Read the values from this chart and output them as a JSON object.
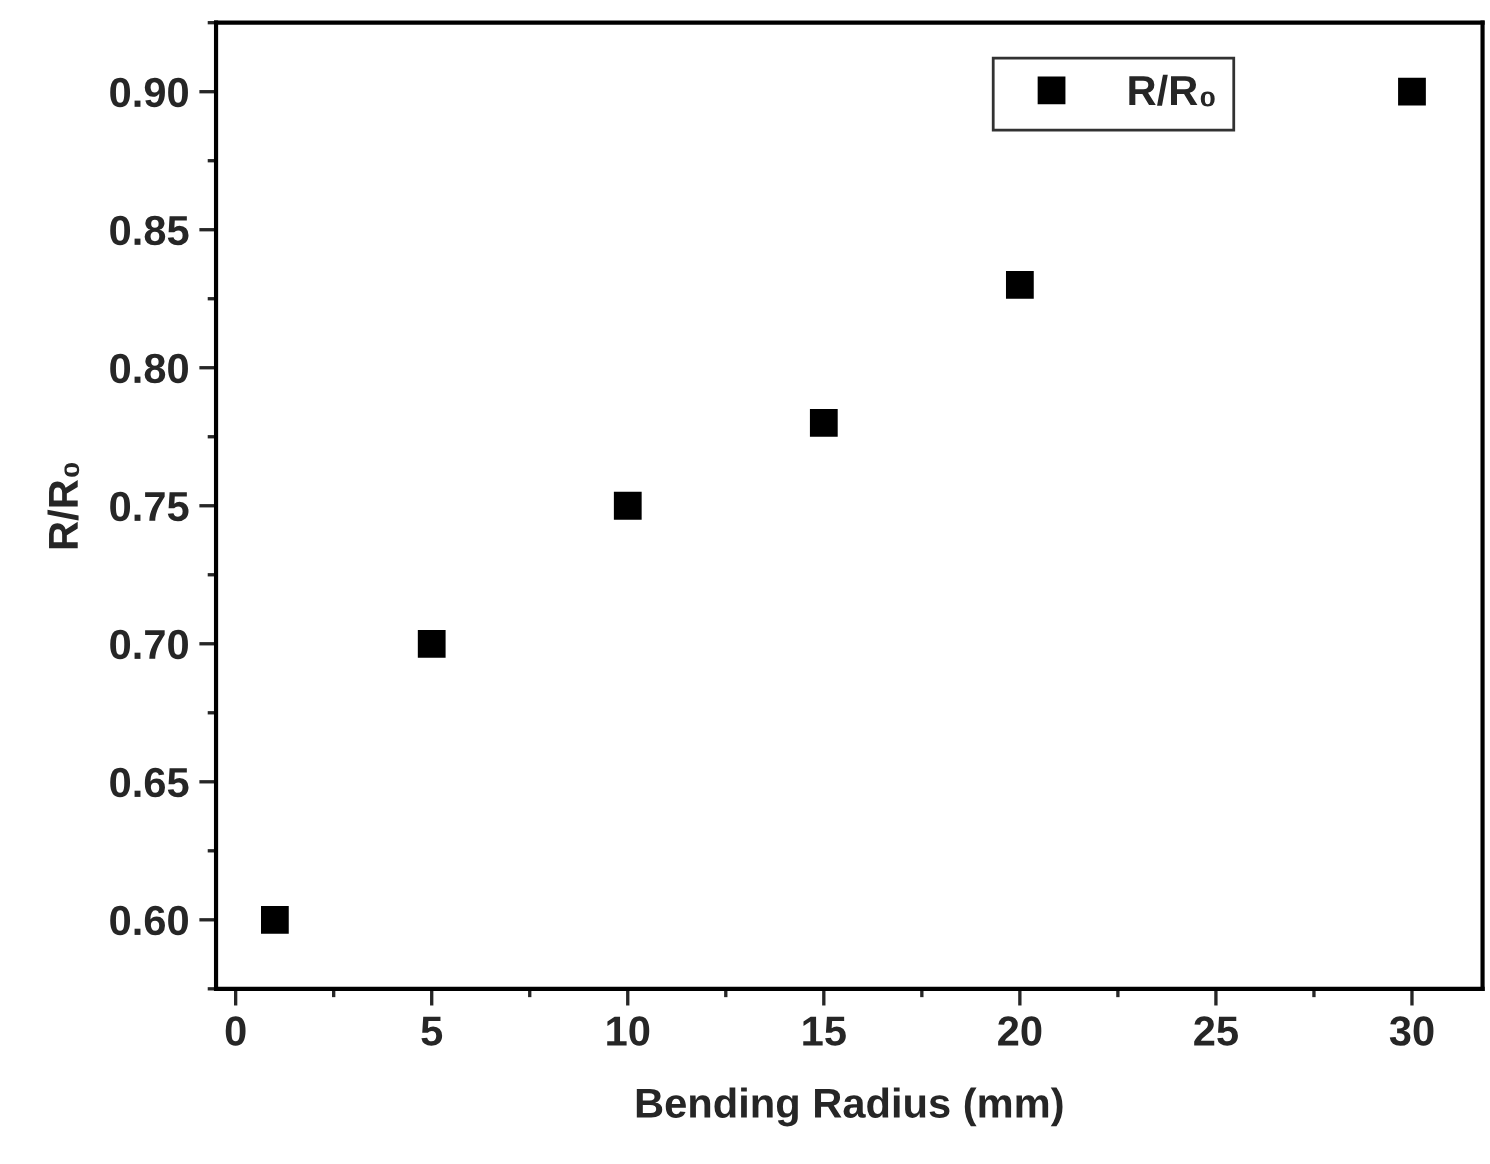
{
  "chart_data": {
    "type": "scatter",
    "xlabel": "Bending Radius (mm)",
    "ylabel": "R/R₀",
    "x": [
      1,
      5,
      10,
      15,
      20,
      30
    ],
    "series": [
      {
        "name": "R/R₀",
        "color": "#000000",
        "values": [
          0.6,
          0.7,
          0.75,
          0.78,
          0.83,
          0.9
        ]
      }
    ],
    "xlim": [
      -0.5,
      31.8
    ],
    "xticks": [
      0,
      5,
      10,
      15,
      20,
      25,
      30
    ],
    "ylim": [
      0.575,
      0.925
    ],
    "yticks": [
      {
        "value": 0.6,
        "label": "0.60"
      },
      0.65,
      {
        "value": 0.7,
        "label": "0.70"
      },
      0.75,
      {
        "value": 0.8,
        "label": "0.80"
      },
      0.85,
      {
        "value": 0.9,
        "label": "0.90"
      }
    ],
    "marker": "square",
    "legend": "top right",
    "grid": false
  }
}
